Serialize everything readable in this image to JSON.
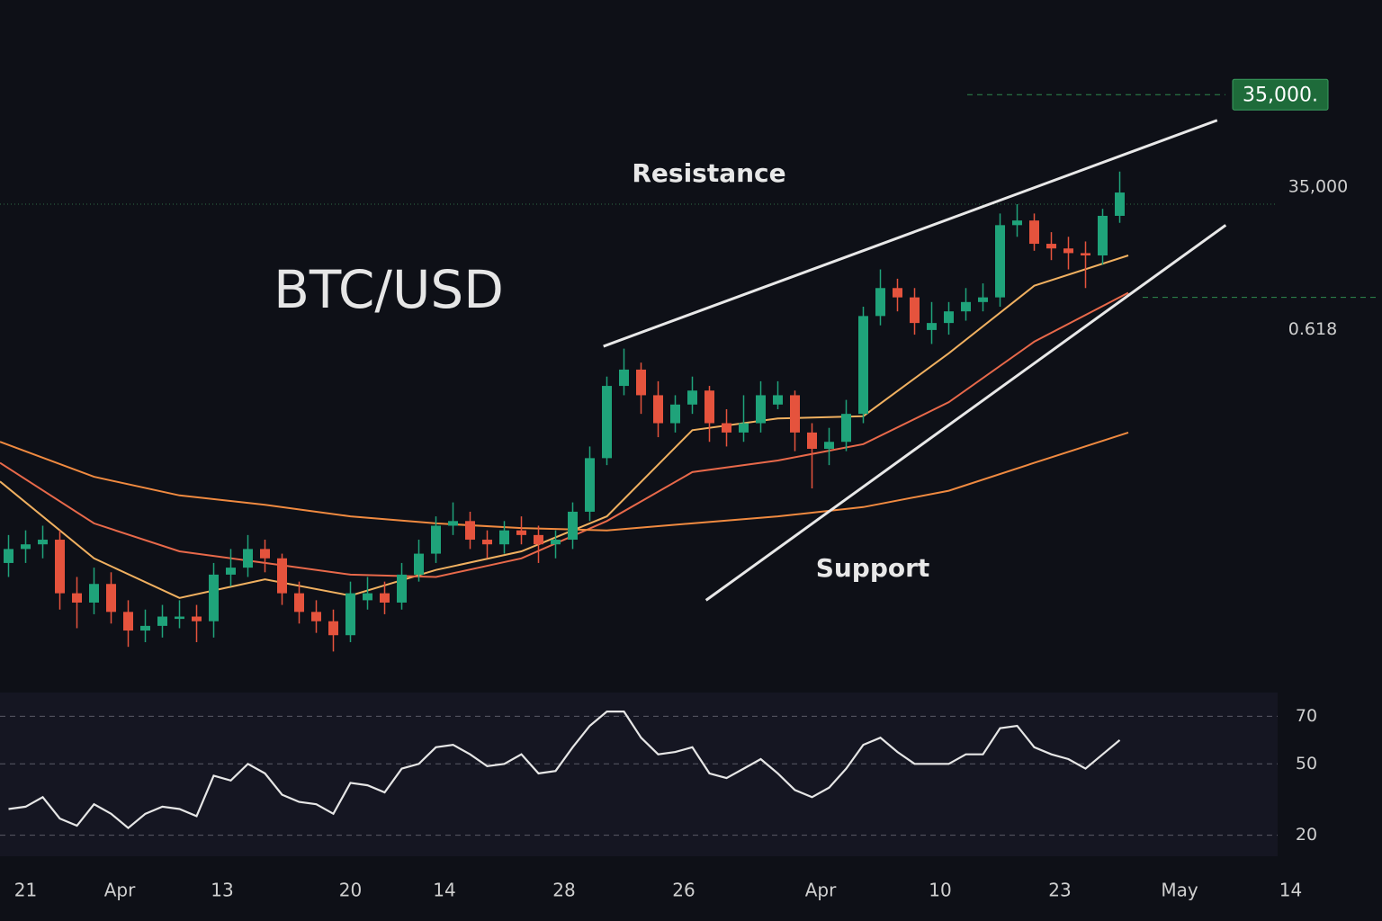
{
  "chart_data": {
    "type": "candlestick",
    "title": "BTC/USD",
    "xlim": [
      -0.5,
      80.3
    ],
    "ylim": [
      24500,
      37500
    ],
    "xticks": [
      {
        "value": 1,
        "label": "21"
      },
      {
        "value": 6.5,
        "label": "Apr"
      },
      {
        "value": 12.5,
        "label": "13"
      },
      {
        "value": 20,
        "label": "20"
      },
      {
        "value": 25.5,
        "label": "14"
      },
      {
        "value": 32.5,
        "label": "28"
      },
      {
        "value": 39.5,
        "label": "26"
      },
      {
        "value": 47.5,
        "label": "Apr"
      },
      {
        "value": 54.5,
        "label": "10"
      },
      {
        "value": 61.5,
        "label": "23"
      },
      {
        "value": 68.5,
        "label": "May"
      },
      {
        "value": 75,
        "label": "14"
      }
    ],
    "yticks": [
      {
        "value": 35000,
        "label": "35,000"
      }
    ],
    "up_color": "#1fa37a",
    "down_color": "#e5533d",
    "candles": [
      [
        27300,
        27900,
        27000,
        27600
      ],
      [
        27600,
        28000,
        27300,
        27700
      ],
      [
        27700,
        28100,
        27400,
        27800
      ],
      [
        27800,
        28000,
        26300,
        26650
      ],
      [
        26650,
        27000,
        25900,
        26450
      ],
      [
        26450,
        27200,
        26200,
        26850
      ],
      [
        26850,
        27100,
        26000,
        26250
      ],
      [
        26250,
        26500,
        25500,
        25850
      ],
      [
        25850,
        26300,
        25600,
        25950
      ],
      [
        25950,
        26400,
        25700,
        26150
      ],
      [
        26100,
        26500,
        25900,
        26150
      ],
      [
        26150,
        26400,
        25600,
        26050
      ],
      [
        26050,
        27300,
        25700,
        27050
      ],
      [
        27050,
        27600,
        26800,
        27200
      ],
      [
        27200,
        27900,
        27000,
        27600
      ],
      [
        27600,
        27800,
        27100,
        27400
      ],
      [
        27400,
        27500,
        26400,
        26650
      ],
      [
        26650,
        26900,
        26000,
        26250
      ],
      [
        26250,
        26500,
        25800,
        26050
      ],
      [
        26050,
        26300,
        25400,
        25750
      ],
      [
        25750,
        26900,
        25600,
        26650
      ],
      [
        26500,
        27000,
        26300,
        26650
      ],
      [
        26650,
        26900,
        26200,
        26450
      ],
      [
        26450,
        27300,
        26300,
        27050
      ],
      [
        27050,
        27800,
        26900,
        27500
      ],
      [
        27500,
        28300,
        27300,
        28100
      ],
      [
        28100,
        28600,
        27900,
        28200
      ],
      [
        28200,
        28400,
        27600,
        27800
      ],
      [
        27800,
        28000,
        27400,
        27700
      ],
      [
        27700,
        28200,
        27500,
        28000
      ],
      [
        28000,
        28300,
        27700,
        27900
      ],
      [
        27900,
        28100,
        27300,
        27700
      ],
      [
        27700,
        28000,
        27400,
        27800
      ],
      [
        27800,
        28600,
        27600,
        28400
      ],
      [
        28400,
        29800,
        28200,
        29550
      ],
      [
        29550,
        31300,
        29400,
        31100
      ],
      [
        31100,
        31900,
        30900,
        31450
      ],
      [
        31450,
        31600,
        30500,
        30900
      ],
      [
        30900,
        31200,
        30000,
        30300
      ],
      [
        30300,
        30900,
        30100,
        30700
      ],
      [
        30700,
        31300,
        30500,
        31000
      ],
      [
        31000,
        31100,
        29900,
        30300
      ],
      [
        30300,
        30600,
        29800,
        30100
      ],
      [
        30100,
        30900,
        29900,
        30300
      ],
      [
        30300,
        31200,
        30100,
        30900
      ],
      [
        30700,
        31200,
        30600,
        30900
      ],
      [
        30900,
        31000,
        29700,
        30100
      ],
      [
        30100,
        30300,
        28900,
        29750
      ],
      [
        29750,
        30200,
        29400,
        29900
      ],
      [
        29900,
        30800,
        29700,
        30500
      ],
      [
        30500,
        32800,
        30300,
        32600
      ],
      [
        32600,
        33600,
        32400,
        33200
      ],
      [
        33200,
        33400,
        32700,
        33000
      ],
      [
        33000,
        33200,
        32200,
        32450
      ],
      [
        32300,
        32900,
        32000,
        32450
      ],
      [
        32450,
        32900,
        32200,
        32700
      ],
      [
        32700,
        33200,
        32500,
        32900
      ],
      [
        32900,
        33300,
        32700,
        33000
      ],
      [
        33000,
        34800,
        32800,
        34550
      ],
      [
        34550,
        35000,
        34300,
        34650
      ],
      [
        34650,
        34800,
        34000,
        34150
      ],
      [
        34150,
        34400,
        33800,
        34050
      ],
      [
        34050,
        34300,
        33600,
        33950
      ],
      [
        33950,
        34200,
        33200,
        33900
      ],
      [
        33900,
        34900,
        33700,
        34750
      ],
      [
        34750,
        35700,
        34600,
        35250
      ]
    ],
    "series": [
      {
        "color": "#f0b060",
        "x": [
          -0.5,
          5,
          10,
          15,
          20,
          25,
          30,
          35,
          40,
          45,
          50,
          55,
          60,
          65.5
        ],
        "values": [
          29050,
          27400,
          26550,
          26950,
          26600,
          27150,
          27550,
          28300,
          30150,
          30400,
          30450,
          31800,
          33250,
          33900
        ]
      },
      {
        "color": "#e8694a",
        "x": [
          -0.5,
          5,
          10,
          15,
          20,
          25,
          30,
          35,
          40,
          45,
          50,
          55,
          60,
          65.5
        ],
        "values": [
          29450,
          28150,
          27550,
          27300,
          27050,
          27000,
          27400,
          28200,
          29250,
          29500,
          29850,
          30750,
          32050,
          33100
        ]
      },
      {
        "color": "#f08a40",
        "x": [
          -0.5,
          5,
          10,
          15,
          20,
          25,
          30,
          35,
          40,
          45,
          50,
          55,
          60,
          65.5
        ],
        "values": [
          29900,
          29150,
          28750,
          28550,
          28300,
          28150,
          28050,
          28000,
          28150,
          28300,
          28500,
          28850,
          29450,
          30100
        ]
      }
    ],
    "trendlines": [
      {
        "label": "Resistance",
        "x": [
          34.8,
          70.7
        ],
        "y": [
          31950,
          36800
        ]
      },
      {
        "label": "Support",
        "x": [
          40.8,
          71.2
        ],
        "y": [
          26500,
          34550
        ]
      }
    ],
    "levels": [
      {
        "label": "0.618",
        "value": 33000
      },
      {
        "label": "35,000.",
        "value": 37350
      }
    ],
    "rsi": {
      "color": "#e6e6e6",
      "ylim": [
        10,
        80
      ],
      "yticks": [
        20,
        50,
        70
      ],
      "values": [
        31,
        32,
        36,
        27,
        24,
        33,
        29,
        23,
        29,
        32,
        31,
        28,
        45,
        43,
        50,
        46,
        37,
        34,
        33,
        29,
        42,
        41,
        38,
        48,
        50,
        57,
        58,
        54,
        49,
        50,
        54,
        46,
        47,
        57,
        66,
        72,
        72,
        61,
        54,
        55,
        57,
        46,
        44,
        48,
        52,
        46,
        39,
        36,
        40,
        48,
        58,
        61,
        55,
        50,
        50,
        50,
        54,
        54,
        65,
        66,
        57,
        54,
        52,
        48,
        54,
        60
      ]
    }
  }
}
